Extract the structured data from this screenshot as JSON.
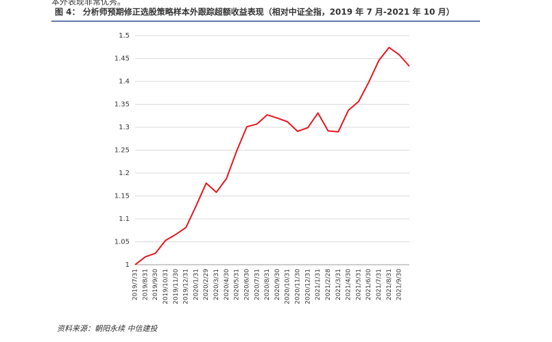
{
  "preceding_text": "本外表现非常优秀。",
  "chart_data": {
    "type": "line",
    "title": "图 4：  分析师预期修正选股策略样本外跟踪超额收益表现（相对中证全指，2019 年 7 月-2021 年 10 月）",
    "source": "资料来源：朝阳永续  中信建投",
    "categories": [
      "2019/7/31",
      "2019/8/31",
      "2019/9/30",
      "2019/10/31",
      "2019/11/30",
      "2019/12/31",
      "2020/1/31",
      "2020/2/29",
      "2020/3/31",
      "2020/4/30",
      "2020/5/31",
      "2020/6/30",
      "2020/7/31",
      "2020/8/31",
      "2020/9/30",
      "2020/10/31",
      "2020/11/30",
      "2020/12/31",
      "2021/1/31",
      "2021/2/28",
      "2021/3/31",
      "2021/4/30",
      "2021/5/31",
      "2021/6/30",
      "2021/7/31",
      "2021/8/31",
      "2021/9/30",
      null
    ],
    "values": [
      1.0,
      1.017,
      1.025,
      1.053,
      1.066,
      1.081,
      1.128,
      1.178,
      1.158,
      1.188,
      1.248,
      1.301,
      1.307,
      1.327,
      1.32,
      1.312,
      1.291,
      1.299,
      1.331,
      1.292,
      1.29,
      1.337,
      1.356,
      1.398,
      1.446,
      1.474,
      1.458,
      1.433
    ],
    "color": "#e8141c",
    "ylim": [
      1,
      1.5
    ],
    "yticks": [
      1,
      1.05,
      1.1,
      1.15,
      1.2,
      1.25,
      1.3,
      1.35,
      1.4,
      1.45,
      1.5
    ],
    "grid": true
  }
}
